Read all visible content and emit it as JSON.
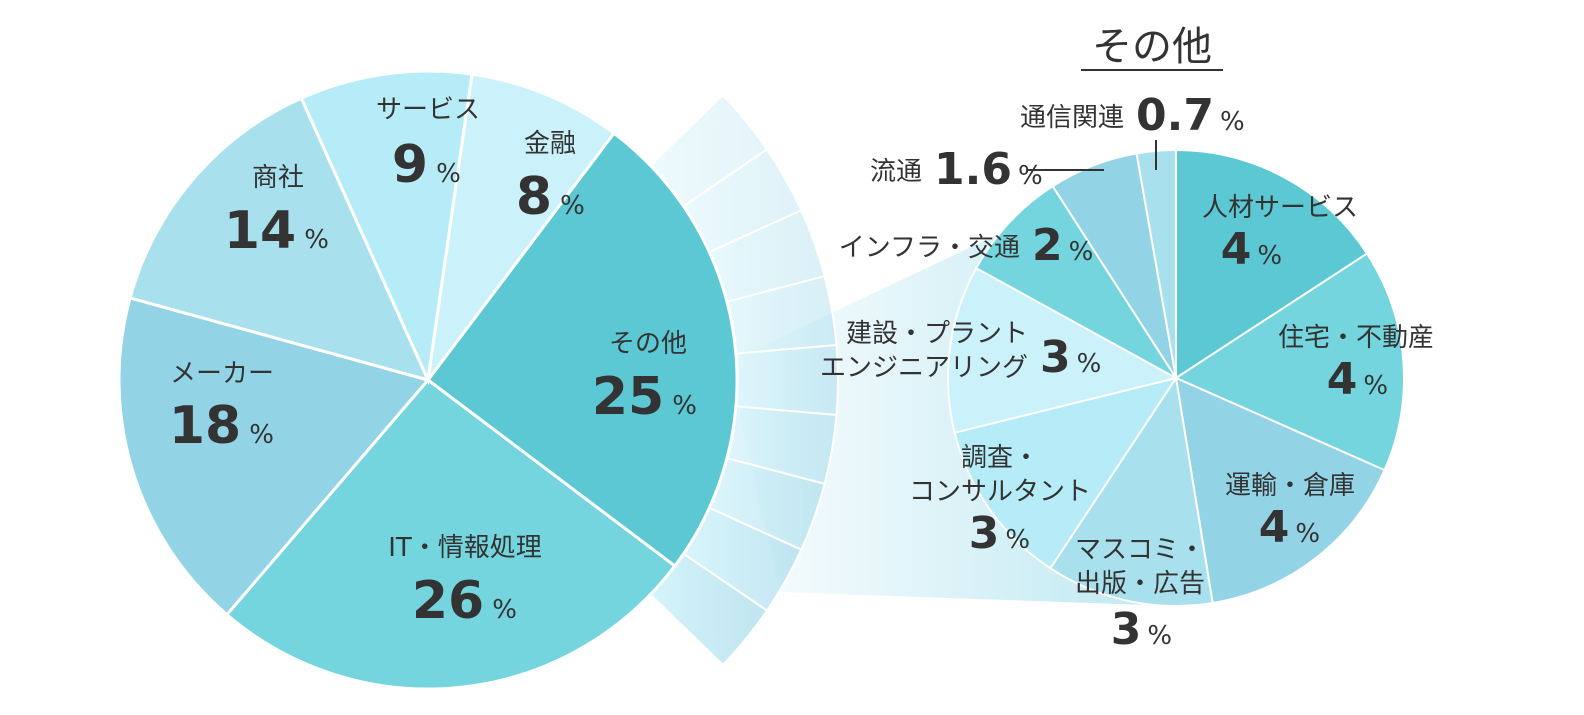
{
  "chart_data": [
    {
      "type": "pie",
      "categories": [
        "その他",
        "IT・情報処理",
        "メーカー",
        "商社",
        "サービス",
        "金融"
      ],
      "values": [
        25,
        26,
        18,
        14,
        9,
        8
      ],
      "labels": [
        "その他",
        "IT・情報処理",
        "メーカー",
        "商社",
        "サービス",
        "金融"
      ],
      "value_labels": [
        "25",
        "26",
        "18",
        "14",
        "9",
        "8"
      ],
      "unit": "%",
      "colors": [
        "#5bc8d3",
        "#74d5de",
        "#93d3e6",
        "#a8e0ee",
        "#b6ecf7",
        "#cbf2fb"
      ]
    },
    {
      "type": "pie",
      "title": "その他",
      "categories": [
        "人材サービス",
        "住宅・不動産",
        "運輸・倉庫",
        "マスコミ・出版・広告",
        "調査・コンサルタント",
        "建設・プラントエンジニアリング",
        "インフラ・交通",
        "流通",
        "通信関連"
      ],
      "values": [
        4,
        4,
        4,
        3,
        3,
        3,
        2,
        1.6,
        0.7
      ],
      "label_lines": [
        [
          "人材サービス"
        ],
        [
          "住宅・不動産"
        ],
        [
          "運輸・倉庫"
        ],
        [
          "マスコミ・",
          "出版・広告"
        ],
        [
          "調査・",
          "コンサルタント"
        ],
        [
          "建設・プラント",
          "エンジニアリング"
        ],
        [
          "インフラ・交通"
        ],
        [
          "流通"
        ],
        [
          "通信関連"
        ]
      ],
      "value_labels": [
        "4",
        "4",
        "4",
        "3",
        "3",
        "3",
        "2",
        "1.6",
        "0.7"
      ],
      "unit": "%",
      "colors": [
        "#5bc8d3",
        "#74d5de",
        "#93d3e6",
        "#a8e0ee",
        "#b6ecf7",
        "#cbf2fb",
        "#74d5de",
        "#93d3e6",
        "#a8e0ee"
      ]
    }
  ]
}
